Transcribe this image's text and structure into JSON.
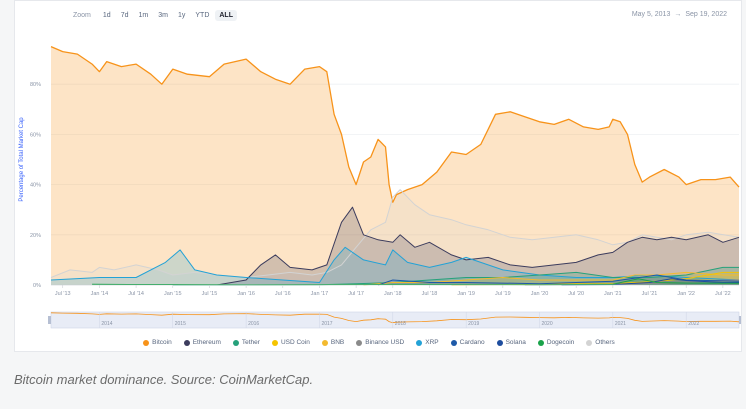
{
  "zoom": {
    "label": "Zoom",
    "options": [
      "1d",
      "7d",
      "1m",
      "3m",
      "1y",
      "YTD",
      "ALL"
    ],
    "active": "ALL"
  },
  "date_range": {
    "start": "May 5, 2013",
    "arrow": "→",
    "end": "Sep 19, 2022"
  },
  "caption": "Bitcoin market dominance. Source: CoinMarketCap.",
  "colors": {
    "Bitcoin": "#f7931a",
    "Ethereum": "#3c3c5d",
    "Tether": "#26a17b",
    "USD Coin": "#f5c400",
    "BNB": "#f3ba2f",
    "Binance USD": "#8a8a8a",
    "XRP": "#23a2d6",
    "Cardano": "#1e5aa8",
    "Solana": "#1e4d9e",
    "Dogecoin": "#1aa34a",
    "Others": "#d3d3d3"
  },
  "chart_data": {
    "type": "area",
    "ylabel": "Percentage of Total Market Cap",
    "y_ticks": [
      "0%",
      "20%",
      "40%",
      "60%",
      "80%"
    ],
    "ylim": [
      0,
      100
    ],
    "x_ticks": [
      "Jul '13",
      "Jan '14",
      "Jul '14",
      "Jan '15",
      "Jul '15",
      "Jan '16",
      "Jul '16",
      "Jan '17",
      "Jul '17",
      "Jan '18",
      "Jul '18",
      "Jan '19",
      "Jul '19",
      "Jan '20",
      "Jul '20",
      "Jan '21",
      "Jul '21",
      "Jan '22",
      "Jul '22"
    ],
    "navigator_ticks": [
      "2014",
      "2015",
      "2016",
      "2017",
      "2018",
      "2019",
      "2020",
      "2021",
      "2022"
    ],
    "legend_position": "bottom",
    "grid": true,
    "series": [
      {
        "name": "Bitcoin",
        "x": [
          2013.34,
          2013.5,
          2013.7,
          2013.9,
          2014.0,
          2014.1,
          2014.3,
          2014.5,
          2014.7,
          2014.85,
          2015.0,
          2015.2,
          2015.5,
          2015.7,
          2016.0,
          2016.2,
          2016.4,
          2016.6,
          2016.8,
          2017.0,
          2017.1,
          2017.2,
          2017.3,
          2017.4,
          2017.5,
          2017.6,
          2017.7,
          2017.8,
          2017.9,
          2017.95,
          2018.0,
          2018.05,
          2018.2,
          2018.4,
          2018.6,
          2018.8,
          2019.0,
          2019.2,
          2019.4,
          2019.6,
          2019.8,
          2020.0,
          2020.2,
          2020.4,
          2020.6,
          2020.8,
          2020.95,
          2021.0,
          2021.1,
          2021.2,
          2021.3,
          2021.4,
          2021.5,
          2021.7,
          2021.9,
          2022.0,
          2022.2,
          2022.4,
          2022.6,
          2022.72
        ],
        "values": [
          95,
          93,
          92,
          88,
          85,
          89,
          87,
          88,
          84,
          80,
          86,
          84,
          83,
          88,
          90,
          85,
          82,
          80,
          86,
          87,
          85,
          68,
          60,
          47,
          40,
          49,
          51,
          58,
          55,
          40,
          33,
          36,
          38,
          40,
          45,
          53,
          52,
          56,
          68,
          69,
          67,
          65,
          64,
          66,
          63,
          62,
          63,
          66,
          65,
          60,
          48,
          41,
          43,
          46,
          43,
          40,
          42,
          42,
          43,
          39
        ]
      },
      {
        "name": "Others",
        "x": [
          2013.34,
          2013.6,
          2013.9,
          2014.0,
          2014.2,
          2014.5,
          2014.8,
          2015.0,
          2015.3,
          2015.6,
          2016.0,
          2016.3,
          2016.6,
          2016.9,
          2017.1,
          2017.3,
          2017.5,
          2017.7,
          2017.9,
          2018.0,
          2018.1,
          2018.3,
          2018.5,
          2018.8,
          2019.0,
          2019.3,
          2019.6,
          2019.9,
          2020.2,
          2020.5,
          2020.8,
          2021.0,
          2021.2,
          2021.4,
          2021.6,
          2021.8,
          2022.0,
          2022.3,
          2022.72
        ],
        "values": [
          3,
          6,
          5,
          7,
          6,
          8,
          6,
          4,
          5,
          4,
          3,
          4,
          5,
          4,
          5,
          8,
          15,
          22,
          25,
          35,
          38,
          32,
          28,
          26,
          24,
          22,
          19,
          18,
          19,
          20,
          18,
          16,
          17,
          20,
          19,
          18,
          20,
          21,
          19
        ]
      },
      {
        "name": "Ethereum",
        "x": [
          2015.6,
          2016.0,
          2016.2,
          2016.4,
          2016.6,
          2016.9,
          2017.1,
          2017.3,
          2017.45,
          2017.6,
          2017.8,
          2018.0,
          2018.1,
          2018.3,
          2018.5,
          2018.8,
          2019.0,
          2019.3,
          2019.6,
          2019.9,
          2020.2,
          2020.5,
          2020.8,
          2021.0,
          2021.2,
          2021.4,
          2021.6,
          2021.8,
          2022.0,
          2022.3,
          2022.5,
          2022.72
        ],
        "values": [
          0,
          2,
          8,
          12,
          7,
          6,
          8,
          25,
          31,
          20,
          18,
          17,
          20,
          15,
          17,
          12,
          10,
          11,
          8,
          7,
          8,
          9,
          12,
          13,
          17,
          19,
          18,
          19,
          18,
          20,
          17,
          19
        ]
      },
      {
        "name": "XRP",
        "x": [
          2013.34,
          2014.0,
          2014.5,
          2014.9,
          2015.1,
          2015.3,
          2015.6,
          2016.0,
          2016.5,
          2017.0,
          2017.2,
          2017.35,
          2017.6,
          2017.9,
          2018.0,
          2018.2,
          2018.5,
          2018.8,
          2019.0,
          2019.5,
          2020.0,
          2020.5,
          2021.0,
          2021.5,
          2022.0,
          2022.72
        ],
        "values": [
          2,
          3,
          3,
          9,
          14,
          6,
          4,
          3,
          2,
          1,
          10,
          15,
          10,
          8,
          14,
          9,
          7,
          9,
          11,
          6,
          4,
          3,
          3,
          4,
          3,
          2
        ]
      },
      {
        "name": "Tether",
        "x": [
          2015.0,
          2016.0,
          2017.0,
          2017.5,
          2018.0,
          2018.5,
          2019.0,
          2019.5,
          2020.0,
          2020.5,
          2021.0,
          2021.5,
          2022.0,
          2022.5,
          2022.72
        ],
        "values": [
          0,
          0,
          0.1,
          0.5,
          1,
          2,
          3,
          3,
          4,
          5,
          3,
          3,
          4,
          7,
          7
        ]
      },
      {
        "name": "BNB",
        "x": [
          2017.6,
          2018.0,
          2018.5,
          2019.0,
          2019.5,
          2020.0,
          2020.5,
          2021.0,
          2021.3,
          2021.6,
          2022.0,
          2022.5,
          2022.72
        ],
        "values": [
          0,
          1,
          1,
          2,
          3,
          2,
          2,
          2,
          4,
          4,
          5,
          4,
          4
        ]
      },
      {
        "name": "USD Coin",
        "x": [
          2018.8,
          2019.5,
          2020.0,
          2020.5,
          2021.0,
          2021.5,
          2022.0,
          2022.5,
          2022.72
        ],
        "values": [
          0,
          0.2,
          0.3,
          0.5,
          0.5,
          1.3,
          2.5,
          5,
          5
        ]
      },
      {
        "name": "Binance USD",
        "x": [
          2019.8,
          2020.5,
          2021.0,
          2021.5,
          2022.0,
          2022.5,
          2022.72
        ],
        "values": [
          0,
          0.2,
          0.2,
          0.6,
          1,
          2,
          2
        ]
      },
      {
        "name": "Cardano",
        "x": [
          2017.8,
          2018.0,
          2018.5,
          2019.0,
          2020.0,
          2021.0,
          2021.6,
          2022.0,
          2022.72
        ],
        "values": [
          0,
          2,
          1,
          1,
          0.5,
          1.5,
          4,
          2,
          1.5
        ]
      },
      {
        "name": "Solana",
        "x": [
          2020.3,
          2021.0,
          2021.5,
          2021.8,
          2022.0,
          2022.5,
          2022.72
        ],
        "values": [
          0,
          0.2,
          1,
          2.5,
          1.8,
          1,
          1
        ]
      },
      {
        "name": "Dogecoin",
        "x": [
          2013.9,
          2014.5,
          2015.0,
          2016.0,
          2018.0,
          2020.0,
          2021.0,
          2021.35,
          2021.6,
          2022.0,
          2022.72
        ],
        "values": [
          0.3,
          0.2,
          0.2,
          0.1,
          0.2,
          0.1,
          0.3,
          2.5,
          1,
          0.8,
          0.7
        ]
      }
    ]
  }
}
